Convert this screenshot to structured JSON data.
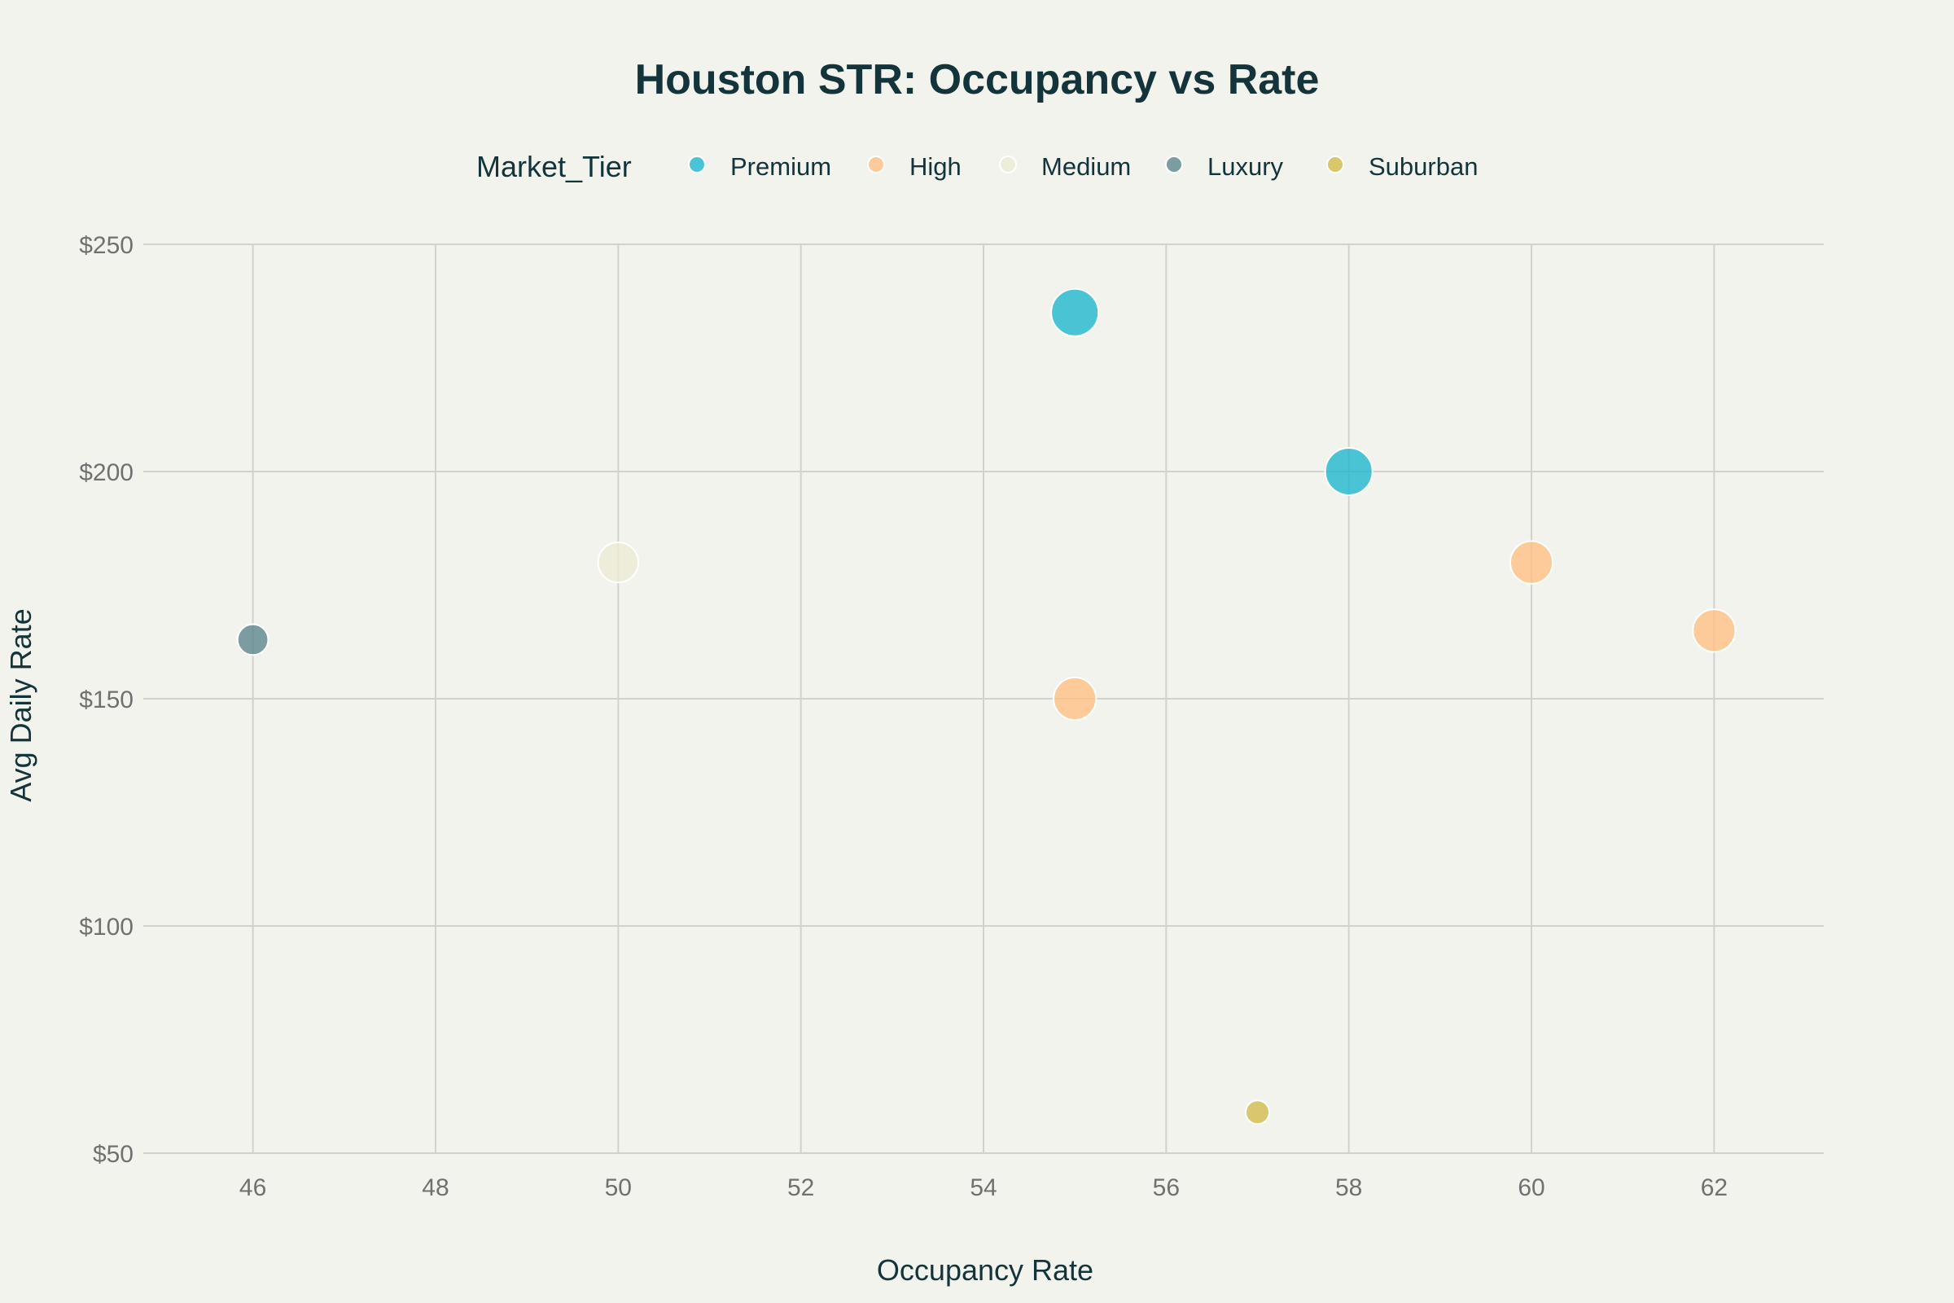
{
  "chart_data": {
    "type": "scatter",
    "title": "Houston STR: Occupancy vs Rate",
    "xlabel": "Occupancy Rate",
    "ylabel": "Avg Daily Rate",
    "xlim": [
      44.8,
      63.2
    ],
    "ylim": [
      50,
      250
    ],
    "x_ticks": [
      46,
      48,
      50,
      52,
      54,
      56,
      58,
      60,
      62
    ],
    "y_ticks": [
      50,
      100,
      150,
      200,
      250
    ],
    "y_tick_labels": [
      "$50",
      "$100",
      "$150",
      "$200",
      "$250"
    ],
    "grid": true,
    "legend": {
      "title": "Market_Tier",
      "placement": "top-center"
    },
    "series": [
      {
        "name": "Premium",
        "color": "#1FB8CD",
        "points": [
          {
            "x": 55,
            "y": 235,
            "size": 1.0
          },
          {
            "x": 58,
            "y": 200,
            "size": 1.0
          }
        ]
      },
      {
        "name": "High",
        "color": "#FFC185",
        "points": [
          {
            "x": 60,
            "y": 180,
            "size": 0.9
          },
          {
            "x": 62,
            "y": 165,
            "size": 0.9
          },
          {
            "x": 55,
            "y": 150,
            "size": 0.9
          }
        ]
      },
      {
        "name": "Medium",
        "color": "#ECEBD5",
        "points": [
          {
            "x": 50,
            "y": 180,
            "size": 0.85
          }
        ]
      },
      {
        "name": "Luxury",
        "color": "#5D878F",
        "points": [
          {
            "x": 46,
            "y": 163,
            "size": 0.65
          }
        ]
      },
      {
        "name": "Suburban",
        "color": "#D2BA4C",
        "points": [
          {
            "x": 57,
            "y": 59,
            "size": 0.5
          }
        ]
      }
    ]
  }
}
